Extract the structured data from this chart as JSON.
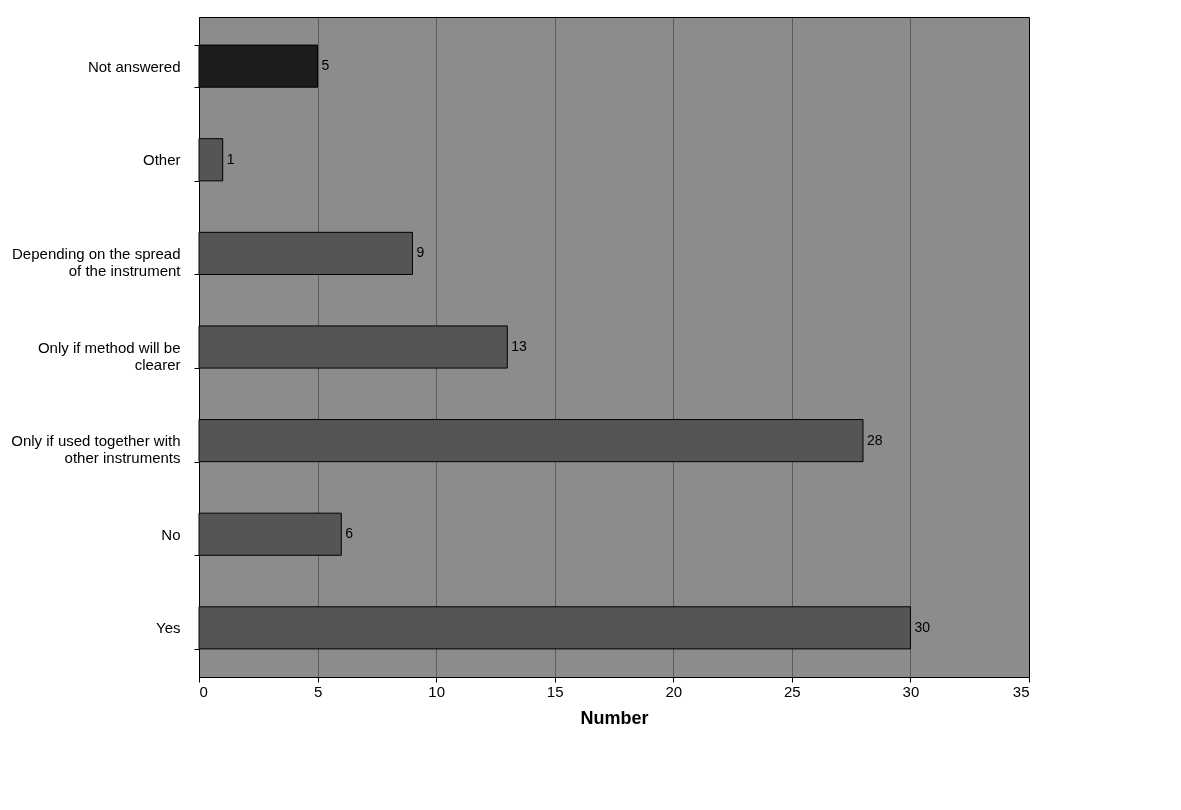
{
  "chart_data": {
    "type": "bar",
    "orientation": "horizontal",
    "xlabel": "Number",
    "categories": [
      "Not answered",
      "Other",
      "Depending on the spread\nof the instrument",
      "Only if method will be\nclearer",
      "Only if used together with\nother instruments",
      "No",
      "Yes"
    ],
    "values": [
      5,
      1,
      9,
      13,
      28,
      6,
      30
    ],
    "colors": [
      "#1c1c1c",
      "#555555",
      "#555555",
      "#555555",
      "#555555",
      "#555555",
      "#555555"
    ],
    "xlim": [
      0,
      35
    ],
    "xticks": [
      0,
      5,
      10,
      15,
      20,
      25,
      30,
      35
    ],
    "grid": "x",
    "data_labels": true
  }
}
